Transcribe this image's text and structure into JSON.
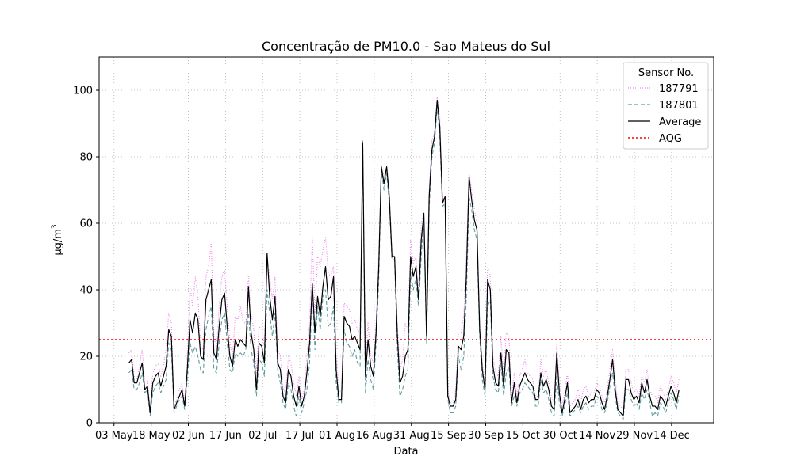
{
  "chart_data": {
    "type": "line",
    "title": "Concentração de PM10.0 - Sao Mateus do Sul",
    "xlabel": "Data",
    "ylabel": "μg/m",
    "ylabel_superscript": "3",
    "ylim": [
      0,
      110
    ],
    "yticks": [
      0,
      20,
      40,
      60,
      80,
      100
    ],
    "xlim": [
      "2022-04-27",
      "2022-12-31"
    ],
    "xtick_dates": [
      "2022-05-03",
      "2022-05-18",
      "2022-06-02",
      "2022-06-17",
      "2022-07-02",
      "2022-07-17",
      "2022-08-01",
      "2022-08-16",
      "2022-08-31",
      "2022-09-15",
      "2022-09-30",
      "2022-10-15",
      "2022-10-30",
      "2022-11-14",
      "2022-11-29",
      "2022-12-14"
    ],
    "xtick_labels": [
      "03 May",
      "18 May",
      "02 Jun",
      "17 Jun",
      "02 Jul",
      "17 Jul",
      "01 Aug",
      "16 Aug",
      "31 Aug",
      "15 Sep",
      "30 Sep",
      "15 Oct",
      "30 Oct",
      "14 Nov",
      "29 Nov",
      "14 Dec"
    ],
    "grid": true,
    "legend_title": "Sensor No.",
    "legend_position": "top-right",
    "aqg": {
      "name": "AQG",
      "value": 25,
      "color": "#ff0000"
    },
    "x_start": "2022-05-09",
    "x_end": "2022-12-17",
    "series": [
      {
        "name": "187791",
        "style": "dotted",
        "color": "#ee82ee",
        "values": [
          21,
          22,
          14,
          13,
          17,
          22,
          12,
          13,
          4,
          15,
          17,
          18,
          14,
          17,
          22,
          33,
          30,
          5,
          7,
          10,
          12,
          6,
          20,
          41,
          35,
          44,
          38,
          23,
          22,
          44,
          47,
          54,
          26,
          22,
          35,
          44,
          46,
          35,
          24,
          20,
          32,
          31,
          35,
          30,
          30,
          44,
          33,
          28,
          15,
          29,
          28,
          23,
          50,
          44,
          37,
          44,
          22,
          20,
          11,
          8,
          20,
          18,
          12,
          8,
          14,
          7,
          10,
          20,
          30,
          56,
          33,
          50,
          47,
          52,
          56,
          45,
          44,
          47,
          20,
          10,
          9,
          36,
          35,
          34,
          30,
          31,
          28,
          27,
          83,
          18,
          30,
          20,
          18,
          30,
          50,
          77,
          74,
          77,
          70,
          51,
          50,
          30,
          16,
          19,
          30,
          28,
          55,
          48,
          50,
          40,
          60,
          63,
          28,
          70,
          85,
          87,
          98,
          92,
          67,
          68,
          10,
          6,
          6,
          10,
          27,
          27,
          32,
          50,
          75,
          70,
          64,
          60,
          30,
          18,
          12,
          47,
          44,
          20,
          15,
          14,
          26,
          14,
          27,
          26,
          8,
          15,
          8,
          14,
          16,
          19,
          15,
          14,
          13,
          8,
          8,
          19,
          14,
          16,
          12,
          8,
          6,
          24,
          12,
          5,
          9,
          15,
          5,
          6,
          7,
          10,
          6,
          10,
          11,
          8,
          9,
          9,
          12,
          11,
          8,
          6,
          10,
          16,
          22,
          13,
          6,
          5,
          4,
          16,
          16,
          12,
          9,
          10,
          8,
          14,
          12,
          16,
          10,
          8,
          8,
          6,
          11,
          9,
          7,
          10,
          14,
          12,
          9,
          13
        ]
      },
      {
        "name": "187801",
        "style": "dashed",
        "color": "#5f9ea0",
        "values": [
          15,
          16,
          10,
          10,
          12,
          15,
          9,
          10,
          2,
          9,
          11,
          12,
          9,
          11,
          13,
          24,
          22,
          3,
          5,
          7,
          8,
          4,
          13,
          24,
          21,
          23,
          20,
          16,
          15,
          28,
          32,
          35,
          16,
          15,
          24,
          31,
          33,
          24,
          16,
          15,
          21,
          20,
          21,
          20,
          22,
          33,
          22,
          18,
          8,
          19,
          18,
          14,
          40,
          33,
          26,
          33,
          16,
          12,
          6,
          4,
          12,
          10,
          5,
          2,
          8,
          3,
          6,
          10,
          18,
          42,
          22,
          35,
          28,
          38,
          40,
          29,
          30,
          35,
          12,
          6,
          6,
          28,
          24,
          23,
          20,
          22,
          18,
          17,
          85,
          9,
          19,
          13,
          10,
          24,
          42,
          76,
          70,
          75,
          66,
          49,
          49,
          23,
          8,
          10,
          14,
          16,
          45,
          40,
          43,
          35,
          50,
          62,
          24,
          65,
          80,
          84,
          95,
          86,
          65,
          66,
          7,
          3,
          3,
          5,
          20,
          16,
          20,
          38,
          68,
          64,
          58,
          55,
          26,
          13,
          8,
          35,
          37,
          14,
          10,
          9,
          18,
          8,
          15,
          17,
          5,
          8,
          5,
          9,
          10,
          12,
          11,
          10,
          9,
          5,
          5,
          13,
          9,
          10,
          7,
          3,
          2,
          14,
          6,
          2,
          5,
          9,
          2,
          3,
          4,
          5,
          3,
          5,
          6,
          4,
          5,
          5,
          8,
          7,
          4,
          3,
          6,
          11,
          15,
          8,
          3,
          2,
          1,
          10,
          10,
          7,
          5,
          6,
          4,
          9,
          7,
          10,
          6,
          2,
          3,
          2,
          6,
          5,
          3,
          6,
          9,
          7,
          4,
          8
        ]
      },
      {
        "name": "Average",
        "style": "solid",
        "color": "#000000",
        "values": [
          18,
          19,
          12,
          12,
          15,
          18,
          10,
          11,
          3,
          12,
          14,
          15,
          11,
          14,
          17,
          28,
          26,
          4,
          6,
          8,
          10,
          5,
          16,
          31,
          27,
          33,
          31,
          20,
          19,
          37,
          40,
          43,
          21,
          19,
          29,
          37,
          39,
          29,
          20,
          17,
          25,
          23,
          25,
          24,
          23,
          41,
          27,
          22,
          10,
          24,
          23,
          18,
          51,
          38,
          31,
          38,
          18,
          16,
          8,
          6,
          16,
          14,
          8,
          5,
          11,
          5,
          8,
          15,
          24,
          42,
          27,
          38,
          32,
          41,
          47,
          37,
          38,
          44,
          16,
          7,
          7,
          32,
          30,
          29,
          25,
          26,
          24,
          22,
          84,
          14,
          25,
          17,
          14,
          27,
          46,
          77,
          72,
          77,
          68,
          50,
          50,
          27,
          12,
          14,
          20,
          22,
          50,
          44,
          47,
          37,
          55,
          63,
          26,
          68,
          82,
          86,
          97,
          89,
          66,
          68,
          8,
          5,
          5,
          7,
          23,
          22,
          26,
          44,
          74,
          67,
          61,
          58,
          28,
          16,
          10,
          43,
          40,
          17,
          12,
          11,
          21,
          11,
          22,
          21,
          6,
          12,
          6,
          11,
          13,
          15,
          13,
          12,
          11,
          7,
          7,
          15,
          11,
          13,
          10,
          5,
          4,
          21,
          9,
          3,
          7,
          12,
          3,
          4,
          5,
          7,
          4,
          7,
          8,
          6,
          7,
          7,
          10,
          9,
          6,
          4,
          8,
          13,
          19,
          10,
          4,
          3,
          2,
          13,
          13,
          9,
          7,
          8,
          6,
          12,
          9,
          13,
          8,
          5,
          5,
          4,
          8,
          7,
          5,
          8,
          11,
          9,
          6,
          10
        ]
      }
    ]
  }
}
